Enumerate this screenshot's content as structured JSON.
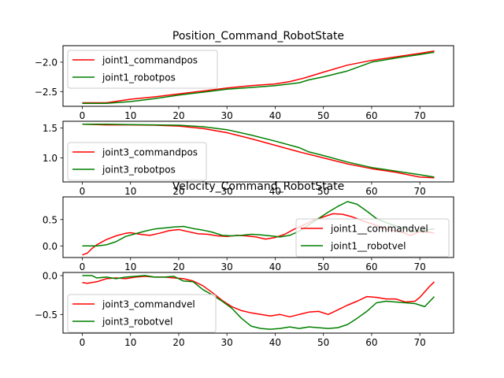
{
  "chart_data": [
    {
      "type": "line",
      "title": "Position_Command_RobotState",
      "xlim": [
        -4,
        77
      ],
      "ylim": [
        -2.75,
        -1.72
      ],
      "xticks": [
        0,
        10,
        20,
        30,
        40,
        50,
        60,
        70
      ],
      "yticks": [
        -2.5,
        -2.0
      ],
      "ytick_labels": [
        "−2.5",
        "−2.0"
      ],
      "grid": false,
      "legend_position": "upper-left",
      "series": [
        {
          "name": "joint1_commandpos",
          "color": "#ff0000",
          "points": [
            [
              0,
              -2.69
            ],
            [
              5,
              -2.69
            ],
            [
              10,
              -2.63
            ],
            [
              15,
              -2.59
            ],
            [
              20,
              -2.54
            ],
            [
              25,
              -2.49
            ],
            [
              30,
              -2.44
            ],
            [
              35,
              -2.4
            ],
            [
              40,
              -2.37
            ],
            [
              43,
              -2.33
            ],
            [
              46,
              -2.27
            ],
            [
              50,
              -2.17
            ],
            [
              55,
              -2.05
            ],
            [
              60,
              -1.97
            ],
            [
              65,
              -1.91
            ],
            [
              70,
              -1.85
            ],
            [
              73,
              -1.81
            ]
          ]
        },
        {
          "name": "joint1_robotpos",
          "color": "#008000",
          "points": [
            [
              0,
              -2.7
            ],
            [
              5,
              -2.7
            ],
            [
              10,
              -2.67
            ],
            [
              15,
              -2.62
            ],
            [
              20,
              -2.56
            ],
            [
              25,
              -2.51
            ],
            [
              30,
              -2.46
            ],
            [
              35,
              -2.43
            ],
            [
              40,
              -2.4
            ],
            [
              45,
              -2.35
            ],
            [
              47,
              -2.3
            ],
            [
              50,
              -2.25
            ],
            [
              55,
              -2.15
            ],
            [
              60,
              -2.0
            ],
            [
              65,
              -1.93
            ],
            [
              70,
              -1.87
            ],
            [
              73,
              -1.83
            ]
          ]
        }
      ]
    },
    {
      "type": "line",
      "xlim": [
        -4,
        77
      ],
      "ylim": [
        0.6,
        1.61
      ],
      "xticks": [
        0,
        10,
        20,
        30,
        40,
        50,
        60,
        70
      ],
      "yticks": [
        1.0,
        1.5
      ],
      "ytick_labels": [
        "1.0",
        "1.5"
      ],
      "grid": false,
      "legend_position": "center-left",
      "series": [
        {
          "name": "joint3_commandpos",
          "color": "#ff0000",
          "points": [
            [
              0,
              1.56
            ],
            [
              5,
              1.55
            ],
            [
              10,
              1.55
            ],
            [
              15,
              1.545
            ],
            [
              20,
              1.53
            ],
            [
              25,
              1.49
            ],
            [
              30,
              1.42
            ],
            [
              35,
              1.32
            ],
            [
              40,
              1.21
            ],
            [
              45,
              1.1
            ],
            [
              50,
              1.0
            ],
            [
              55,
              0.9
            ],
            [
              60,
              0.82
            ],
            [
              65,
              0.76
            ],
            [
              70,
              0.68
            ],
            [
              73,
              0.67
            ]
          ]
        },
        {
          "name": "joint3_robotpos",
          "color": "#008000",
          "points": [
            [
              0,
              1.56
            ],
            [
              5,
              1.56
            ],
            [
              10,
              1.555
            ],
            [
              15,
              1.55
            ],
            [
              20,
              1.545
            ],
            [
              25,
              1.52
            ],
            [
              30,
              1.47
            ],
            [
              35,
              1.38
            ],
            [
              40,
              1.28
            ],
            [
              45,
              1.17
            ],
            [
              47,
              1.1
            ],
            [
              50,
              1.04
            ],
            [
              55,
              0.93
            ],
            [
              60,
              0.84
            ],
            [
              65,
              0.78
            ],
            [
              70,
              0.72
            ],
            [
              73,
              0.68
            ]
          ]
        }
      ]
    },
    {
      "type": "line",
      "title": "Velocity_Command_RobotState",
      "xlim": [
        -4,
        77
      ],
      "ylim": [
        -0.22,
        0.93
      ],
      "xticks": [
        0,
        10,
        20,
        30,
        40,
        50,
        60,
        70
      ],
      "yticks": [
        0.0,
        0.5
      ],
      "ytick_labels": [
        "0.0",
        "0.5"
      ],
      "grid": false,
      "legend_position": "center-right",
      "series": [
        {
          "name": "joint1__commandvel",
          "color": "#ff0000",
          "points": [
            [
              0,
              -0.17
            ],
            [
              1,
              -0.14
            ],
            [
              2,
              -0.05
            ],
            [
              3,
              0.02
            ],
            [
              5,
              0.12
            ],
            [
              7,
              0.19
            ],
            [
              9,
              0.24
            ],
            [
              10,
              0.25
            ],
            [
              12,
              0.22
            ],
            [
              14,
              0.2
            ],
            [
              16,
              0.24
            ],
            [
              18,
              0.29
            ],
            [
              20,
              0.31
            ],
            [
              22,
              0.27
            ],
            [
              24,
              0.23
            ],
            [
              26,
              0.22
            ],
            [
              28,
              0.19
            ],
            [
              30,
              0.18
            ],
            [
              32,
              0.2
            ],
            [
              34,
              0.19
            ],
            [
              36,
              0.17
            ],
            [
              38,
              0.13
            ],
            [
              40,
              0.16
            ],
            [
              42,
              0.22
            ],
            [
              44,
              0.32
            ],
            [
              46,
              0.4
            ],
            [
              48,
              0.49
            ],
            [
              50,
              0.55
            ],
            [
              52,
              0.61
            ],
            [
              54,
              0.6
            ],
            [
              56,
              0.55
            ],
            [
              58,
              0.48
            ],
            [
              60,
              0.42
            ],
            [
              62,
              0.35
            ],
            [
              64,
              0.3
            ],
            [
              66,
              0.27
            ],
            [
              68,
              0.2
            ],
            [
              70,
              0.27
            ],
            [
              72,
              0.26
            ],
            [
              73,
              0.24
            ]
          ]
        },
        {
          "name": "joint1__robotvel",
          "color": "#008000",
          "points": [
            [
              0,
              0.0
            ],
            [
              1,
              0.0
            ],
            [
              3,
              0.0
            ],
            [
              5,
              0.02
            ],
            [
              7,
              0.08
            ],
            [
              9,
              0.18
            ],
            [
              11,
              0.23
            ],
            [
              13,
              0.28
            ],
            [
              15,
              0.32
            ],
            [
              17,
              0.34
            ],
            [
              19,
              0.36
            ],
            [
              21,
              0.37
            ],
            [
              23,
              0.33
            ],
            [
              25,
              0.3
            ],
            [
              27,
              0.26
            ],
            [
              29,
              0.2
            ],
            [
              31,
              0.19
            ],
            [
              33,
              0.2
            ],
            [
              35,
              0.22
            ],
            [
              37,
              0.21
            ],
            [
              39,
              0.19
            ],
            [
              41,
              0.17
            ],
            [
              43,
              0.2
            ],
            [
              45,
              0.28
            ],
            [
              47,
              0.4
            ],
            [
              49,
              0.52
            ],
            [
              51,
              0.64
            ],
            [
              53,
              0.75
            ],
            [
              55,
              0.84
            ],
            [
              57,
              0.79
            ],
            [
              59,
              0.66
            ],
            [
              61,
              0.52
            ],
            [
              63,
              0.44
            ],
            [
              65,
              0.38
            ],
            [
              67,
              0.33
            ],
            [
              69,
              0.27
            ],
            [
              71,
              0.3
            ],
            [
              73,
              0.32
            ]
          ]
        }
      ]
    },
    {
      "type": "line",
      "xlim": [
        -4,
        77
      ],
      "ylim": [
        -0.74,
        0.04
      ],
      "xticks": [
        0,
        10,
        20,
        30,
        40,
        50,
        60,
        70
      ],
      "xtick_labels": [
        "0",
        "10",
        "20",
        "30",
        "40",
        "50",
        "60",
        "70"
      ],
      "yticks": [
        -0.5,
        0.0
      ],
      "ytick_labels": [
        "−0.5",
        "0.0"
      ],
      "grid": false,
      "legend_position": "center-left",
      "series": [
        {
          "name": "joint3_commandvel",
          "color": "#ff0000",
          "points": [
            [
              0,
              -0.09
            ],
            [
              1,
              -0.1
            ],
            [
              3,
              -0.08
            ],
            [
              5,
              -0.04
            ],
            [
              7,
              -0.03
            ],
            [
              9,
              -0.04
            ],
            [
              11,
              -0.02
            ],
            [
              13,
              -0.01
            ],
            [
              15,
              -0.02
            ],
            [
              17,
              -0.02
            ],
            [
              19,
              -0.03
            ],
            [
              21,
              -0.04
            ],
            [
              23,
              -0.07
            ],
            [
              25,
              -0.13
            ],
            [
              27,
              -0.22
            ],
            [
              29,
              -0.32
            ],
            [
              31,
              -0.4
            ],
            [
              33,
              -0.45
            ],
            [
              35,
              -0.48
            ],
            [
              37,
              -0.5
            ],
            [
              39,
              -0.52
            ],
            [
              41,
              -0.5
            ],
            [
              43,
              -0.53
            ],
            [
              45,
              -0.5
            ],
            [
              47,
              -0.47
            ],
            [
              49,
              -0.46
            ],
            [
              51,
              -0.5
            ],
            [
              53,
              -0.44
            ],
            [
              55,
              -0.38
            ],
            [
              57,
              -0.33
            ],
            [
              59,
              -0.27
            ],
            [
              61,
              -0.28
            ],
            [
              63,
              -0.3
            ],
            [
              65,
              -0.3
            ],
            [
              67,
              -0.34
            ],
            [
              69,
              -0.33
            ],
            [
              70,
              -0.28
            ],
            [
              72,
              -0.14
            ],
            [
              73,
              -0.08
            ]
          ]
        },
        {
          "name": "joint3_robotvel",
          "color": "#008000",
          "points": [
            [
              0,
              0.0
            ],
            [
              2,
              0.0
            ],
            [
              3,
              -0.03
            ],
            [
              5,
              -0.02
            ],
            [
              7,
              -0.04
            ],
            [
              9,
              -0.02
            ],
            [
              11,
              -0.01
            ],
            [
              13,
              0.0
            ],
            [
              15,
              -0.02
            ],
            [
              17,
              -0.02
            ],
            [
              19,
              -0.01
            ],
            [
              21,
              -0.07
            ],
            [
              23,
              -0.08
            ],
            [
              25,
              -0.18
            ],
            [
              27,
              -0.25
            ],
            [
              29,
              -0.33
            ],
            [
              31,
              -0.42
            ],
            [
              33,
              -0.55
            ],
            [
              35,
              -0.65
            ],
            [
              37,
              -0.68
            ],
            [
              39,
              -0.69
            ],
            [
              41,
              -0.68
            ],
            [
              43,
              -0.66
            ],
            [
              45,
              -0.68
            ],
            [
              47,
              -0.66
            ],
            [
              49,
              -0.67
            ],
            [
              51,
              -0.68
            ],
            [
              53,
              -0.67
            ],
            [
              55,
              -0.63
            ],
            [
              57,
              -0.55
            ],
            [
              59,
              -0.46
            ],
            [
              61,
              -0.35
            ],
            [
              63,
              -0.33
            ],
            [
              65,
              -0.34
            ],
            [
              67,
              -0.35
            ],
            [
              69,
              -0.36
            ],
            [
              71,
              -0.4
            ],
            [
              73,
              -0.27
            ]
          ]
        }
      ]
    }
  ]
}
